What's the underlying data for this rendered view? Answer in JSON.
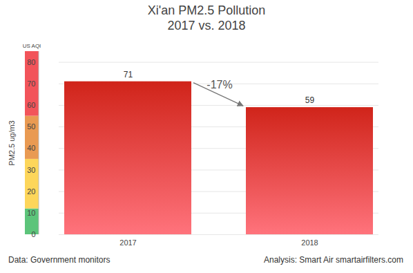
{
  "chart_data": {
    "type": "bar",
    "title": "Xi'an PM2.5 Pollution",
    "subtitle": "2017 vs. 2018",
    "categories": [
      "2017",
      "2018"
    ],
    "values": [
      71,
      59
    ],
    "color": "#d0241a",
    "ylabel": "PM2.5 ug/m3",
    "ylim": [
      0,
      85
    ],
    "yticks": [
      0,
      10,
      20,
      30,
      40,
      50,
      60,
      70,
      80
    ],
    "grid": true,
    "data_labels": true,
    "annotation": "-17%",
    "aqi_label": "US AQI",
    "aqi_bands": [
      {
        "from": 0,
        "to": 12,
        "color": "#5cc47a"
      },
      {
        "from": 12,
        "to": 35,
        "color": "#fdd65a"
      },
      {
        "from": 35,
        "to": 55,
        "color": "#e99a52"
      },
      {
        "from": 55,
        "to": 85,
        "color": "#f2545a"
      }
    ],
    "source": "Data: Government monitors",
    "credit": "Analysis: Smart Air smartairfilters.com"
  }
}
